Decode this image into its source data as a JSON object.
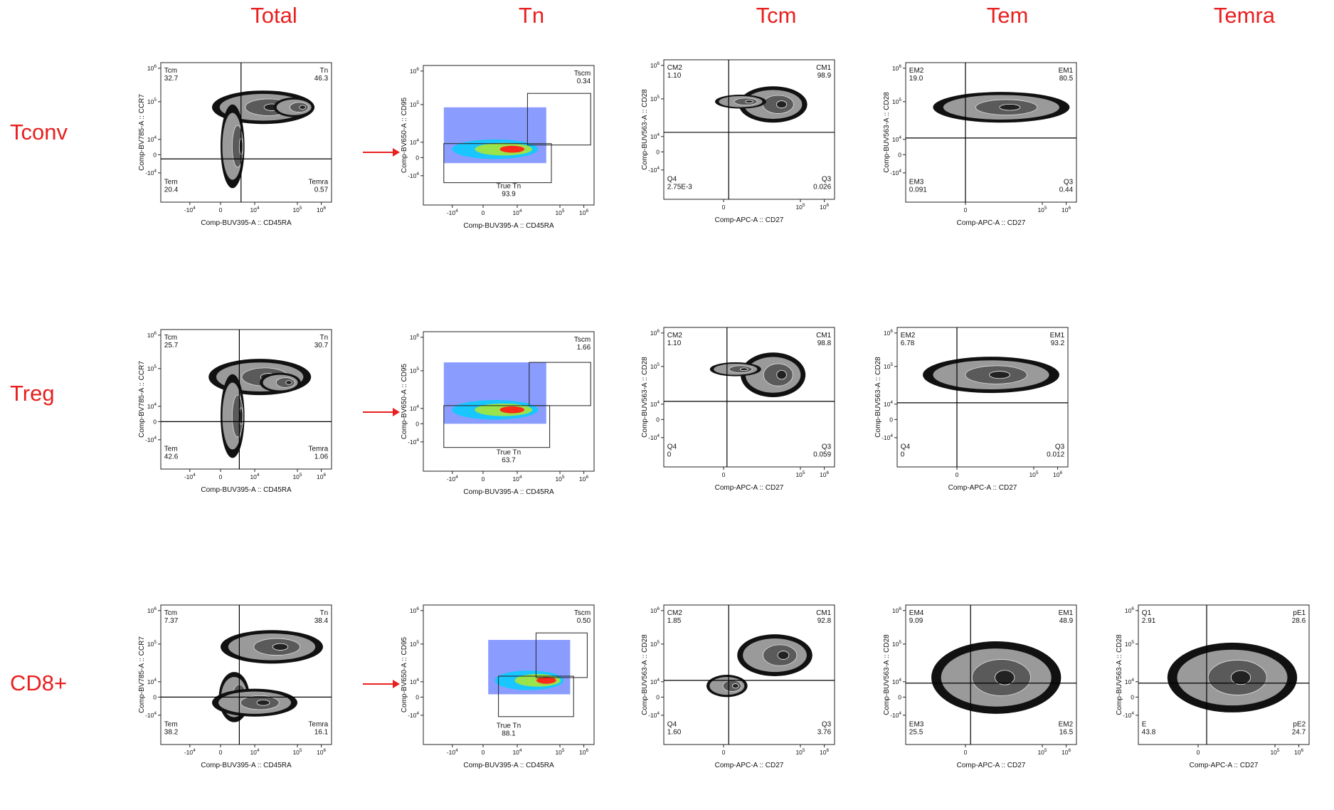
{
  "columns": [
    "Total",
    "Tn",
    "Tcm",
    "Tem",
    "Temra"
  ],
  "rows": [
    "Tconv",
    "Treg",
    "CD8+"
  ],
  "colors": {
    "title": "#e8201f",
    "arrow": "#e8201f"
  },
  "chart_data": [
    {
      "id": "tconv-total",
      "type": "scatter",
      "kind": "contour",
      "row": "Tconv",
      "column": "Total",
      "xlabel": "Comp-BUV395-A :: CD45RA",
      "ylabel": "Comp-BV785-A :: CCR7",
      "xticks": [
        "-10^4",
        "0",
        "10^4",
        "10^5",
        "10^6"
      ],
      "yticks": [
        "10^6",
        "10^5",
        "10^4",
        "0",
        "-10^4"
      ],
      "gates": [
        {
          "name": "Tcm",
          "value": "32.7",
          "pos": "top-left"
        },
        {
          "name": "Tn",
          "value": "46.3",
          "pos": "top-right"
        },
        {
          "name": "Tem",
          "value": "20.4",
          "pos": "bottom-left"
        },
        {
          "name": "Temra",
          "value": "0.57",
          "pos": "bottom-right"
        }
      ]
    },
    {
      "id": "tconv-tn",
      "type": "scatter",
      "kind": "density",
      "row": "Tconv",
      "column": "Tn",
      "xlabel": "Comp-BUV395-A :: CD45RA",
      "ylabel": "Comp-BV650-A :: CD95",
      "xticks": [
        "-10^4",
        "0",
        "10^4",
        "10^5",
        "10^6"
      ],
      "yticks": [
        "10^6",
        "10^5",
        "10^4",
        "0",
        "-10^4"
      ],
      "gates": [
        {
          "name": "Tscm",
          "value": "0.34",
          "pos": "top-right"
        },
        {
          "name": "True Tn",
          "value": "93.9",
          "pos": "bottom-center"
        }
      ]
    },
    {
      "id": "tconv-tcm",
      "type": "scatter",
      "kind": "contour",
      "row": "Tconv",
      "column": "Tcm",
      "xlabel": "Comp-APC-A :: CD27",
      "ylabel": "Comp-BUV563-A :: CD28",
      "xticks": [
        "0",
        "10^5",
        "10^6"
      ],
      "yticks": [
        "10^6",
        "10^5",
        "10^4",
        "0",
        "-10^4"
      ],
      "gates": [
        {
          "name": "CM2",
          "value": "1.10",
          "pos": "top-left"
        },
        {
          "name": "CM1",
          "value": "98.9",
          "pos": "top-right"
        },
        {
          "name": "Q4",
          "value": "2.75E-3",
          "pos": "bottom-left"
        },
        {
          "name": "Q3",
          "value": "0.026",
          "pos": "bottom-right"
        }
      ]
    },
    {
      "id": "tconv-tem",
      "type": "scatter",
      "kind": "contour",
      "row": "Tconv",
      "column": "Tem",
      "xlabel": "Comp-APC-A :: CD27",
      "ylabel": "Comp-BUV563-A :: CD28",
      "xticks": [
        "0",
        "10^5",
        "10^6"
      ],
      "yticks": [
        "10^6",
        "10^5",
        "10^4",
        "0",
        "-10^4"
      ],
      "gates": [
        {
          "name": "EM2",
          "value": "19.0",
          "pos": "top-left"
        },
        {
          "name": "EM1",
          "value": "80.5",
          "pos": "top-right"
        },
        {
          "name": "EM3",
          "value": "0.091",
          "pos": "bottom-left"
        },
        {
          "name": "Q3",
          "value": "0.44",
          "pos": "bottom-right"
        }
      ]
    },
    {
      "id": "treg-total",
      "type": "scatter",
      "kind": "contour",
      "row": "Treg",
      "column": "Total",
      "xlabel": "Comp-BUV395-A :: CD45RA",
      "ylabel": "Comp-BV785-A :: CCR7",
      "xticks": [
        "-10^4",
        "0",
        "10^4",
        "10^5",
        "10^6"
      ],
      "yticks": [
        "10^6",
        "10^5",
        "10^4",
        "0",
        "-10^4"
      ],
      "gates": [
        {
          "name": "Tcm",
          "value": "25.7",
          "pos": "top-left"
        },
        {
          "name": "Tn",
          "value": "30.7",
          "pos": "top-right"
        },
        {
          "name": "Tem",
          "value": "42.6",
          "pos": "bottom-left"
        },
        {
          "name": "Temra",
          "value": "1.06",
          "pos": "bottom-right"
        }
      ]
    },
    {
      "id": "treg-tn",
      "type": "scatter",
      "kind": "density",
      "row": "Treg",
      "column": "Tn",
      "xlabel": "Comp-BUV395-A :: CD45RA",
      "ylabel": "Comp-BV650-A :: CD95",
      "xticks": [
        "-10^4",
        "0",
        "10^4",
        "10^5",
        "10^6"
      ],
      "yticks": [
        "10^6",
        "10^5",
        "10^4",
        "0",
        "-10^4"
      ],
      "gates": [
        {
          "name": "Tscm",
          "value": "1.66",
          "pos": "top-right"
        },
        {
          "name": "True Tn",
          "value": "63.7",
          "pos": "bottom-center"
        }
      ]
    },
    {
      "id": "treg-tcm",
      "type": "scatter",
      "kind": "contour",
      "row": "Treg",
      "column": "Tcm",
      "xlabel": "Comp-APC-A :: CD27",
      "ylabel": "Comp-BUV563-A :: CD28",
      "xticks": [
        "0",
        "10^5",
        "10^6"
      ],
      "yticks": [
        "10^6",
        "10^5",
        "10^4",
        "0",
        "-10^4"
      ],
      "gates": [
        {
          "name": "CM2",
          "value": "1.10",
          "pos": "top-left"
        },
        {
          "name": "CM1",
          "value": "98.8",
          "pos": "top-right"
        },
        {
          "name": "Q4",
          "value": "0",
          "pos": "bottom-left"
        },
        {
          "name": "Q3",
          "value": "0.059",
          "pos": "bottom-right"
        }
      ]
    },
    {
      "id": "treg-tem",
      "type": "scatter",
      "kind": "contour",
      "row": "Treg",
      "column": "Tem",
      "xlabel": "Comp-APC-A :: CD27",
      "ylabel": "Comp-BUV563-A :: CD28",
      "xticks": [
        "0",
        "10^5",
        "10^6"
      ],
      "yticks": [
        "10^6",
        "10^5",
        "10^4",
        "0",
        "-10^4"
      ],
      "gates": [
        {
          "name": "EM2",
          "value": "6.78",
          "pos": "top-left"
        },
        {
          "name": "EM1",
          "value": "93.2",
          "pos": "top-right"
        },
        {
          "name": "Q4",
          "value": "0",
          "pos": "bottom-left"
        },
        {
          "name": "Q3",
          "value": "0.012",
          "pos": "bottom-right"
        }
      ]
    },
    {
      "id": "cd8-total",
      "type": "scatter",
      "kind": "contour",
      "row": "CD8+",
      "column": "Total",
      "xlabel": "Comp-BUV395-A :: CD45RA",
      "ylabel": "Comp-BV785-A :: CCR7",
      "xticks": [
        "-10^4",
        "0",
        "10^4",
        "10^5",
        "10^6"
      ],
      "yticks": [
        "10^6",
        "10^5",
        "10^4",
        "0",
        "-10^4"
      ],
      "gates": [
        {
          "name": "Tcm",
          "value": "7.37",
          "pos": "top-left"
        },
        {
          "name": "Tn",
          "value": "38.4",
          "pos": "top-right"
        },
        {
          "name": "Tem",
          "value": "38.2",
          "pos": "bottom-left"
        },
        {
          "name": "Temra",
          "value": "16.1",
          "pos": "bottom-right"
        }
      ]
    },
    {
      "id": "cd8-tn",
      "type": "scatter",
      "kind": "density",
      "row": "CD8+",
      "column": "Tn",
      "xlabel": "Comp-BUV395-A :: CD45RA",
      "ylabel": "Comp-BV650-A :: CD95",
      "xticks": [
        "-10^4",
        "0",
        "10^4",
        "10^5",
        "10^6"
      ],
      "yticks": [
        "10^6",
        "10^5",
        "10^4",
        "0",
        "-10^4"
      ],
      "gates": [
        {
          "name": "Tscm",
          "value": "0.50",
          "pos": "top-right"
        },
        {
          "name": "True Tn",
          "value": "88.1",
          "pos": "bottom-center"
        }
      ]
    },
    {
      "id": "cd8-tcm",
      "type": "scatter",
      "kind": "contour",
      "row": "CD8+",
      "column": "Tcm",
      "xlabel": "Comp-APC-A :: CD27",
      "ylabel": "Comp-BUV563-A :: CD28",
      "xticks": [
        "0",
        "10^5",
        "10^6"
      ],
      "yticks": [
        "10^6",
        "10^5",
        "10^4",
        "0",
        "-10^4"
      ],
      "gates": [
        {
          "name": "CM2",
          "value": "1.85",
          "pos": "top-left"
        },
        {
          "name": "CM1",
          "value": "92.8",
          "pos": "top-right"
        },
        {
          "name": "Q4",
          "value": "1.60",
          "pos": "bottom-left"
        },
        {
          "name": "Q3",
          "value": "3.76",
          "pos": "bottom-right"
        }
      ]
    },
    {
      "id": "cd8-tem",
      "type": "scatter",
      "kind": "contour",
      "row": "CD8+",
      "column": "Tem",
      "xlabel": "Comp-APC-A :: CD27",
      "ylabel": "Comp-BUV563-A :: CD28",
      "xticks": [
        "0",
        "10^5",
        "10^6"
      ],
      "yticks": [
        "10^6",
        "10^5",
        "10^4",
        "0",
        "-10^4"
      ],
      "gates": [
        {
          "name": "EM4",
          "value": "9.09",
          "pos": "top-left"
        },
        {
          "name": "EM1",
          "value": "48.9",
          "pos": "top-right"
        },
        {
          "name": "EM3",
          "value": "25.5",
          "pos": "bottom-left"
        },
        {
          "name": "EM2",
          "value": "16.5",
          "pos": "bottom-right"
        }
      ]
    },
    {
      "id": "cd8-temra",
      "type": "scatter",
      "kind": "contour",
      "row": "CD8+",
      "column": "Temra",
      "xlabel": "Comp-APC-A :: CD27",
      "ylabel": "Comp-BUV563-A :: CD28",
      "xticks": [
        "0",
        "10^5",
        "10^6"
      ],
      "yticks": [
        "10^6",
        "10^5",
        "10^4",
        "0",
        "-10^4"
      ],
      "gates": [
        {
          "name": "Q1",
          "value": "2.91",
          "pos": "top-left"
        },
        {
          "name": "pE1",
          "value": "28.6",
          "pos": "top-right"
        },
        {
          "name": "E",
          "value": "43.8",
          "pos": "bottom-left"
        },
        {
          "name": "pE2",
          "value": "24.7",
          "pos": "bottom-right"
        }
      ]
    }
  ]
}
